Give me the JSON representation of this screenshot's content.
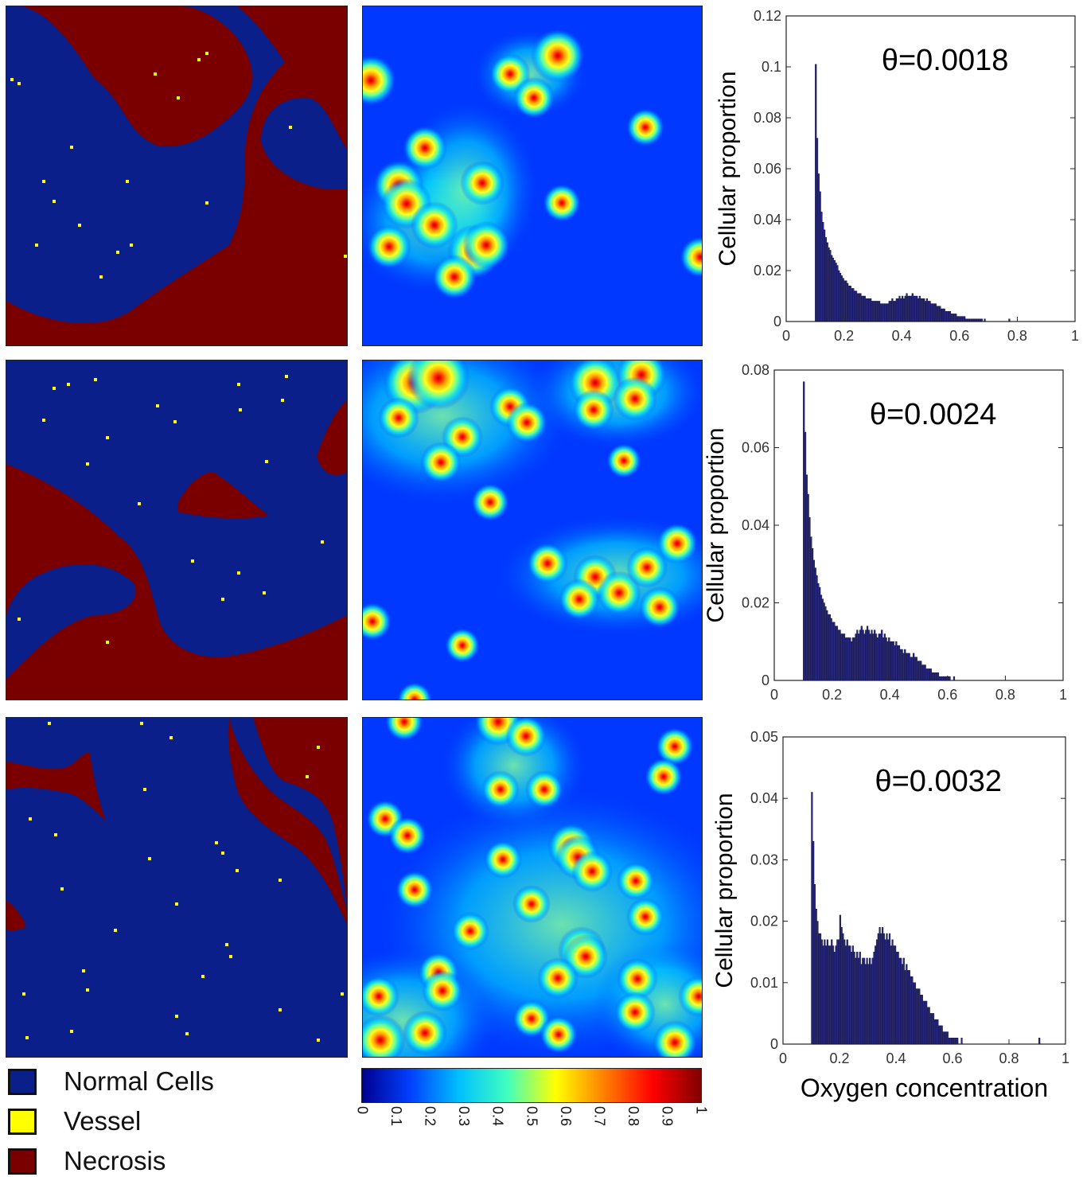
{
  "legend": {
    "items": [
      {
        "label": "Normal Cells",
        "color": "#0a1f8a"
      },
      {
        "label": "Vessel",
        "color": "#ffff00"
      },
      {
        "label": "Necrosis",
        "color": "#7a0000"
      }
    ]
  },
  "colormap": {
    "colors": [
      "#00008f",
      "#0040ff",
      "#00c0ff",
      "#40ffbf",
      "#ffff00",
      "#ff8000",
      "#ff0000",
      "#800000"
    ],
    "ticks": [
      "0",
      "0.1",
      "0.2",
      "0.3",
      "0.4",
      "0.5",
      "0.6",
      "0.7",
      "0.8",
      "0.9",
      "1"
    ]
  },
  "chart_data": [
    {
      "type": "bar",
      "annotation": "θ=0.0018",
      "xlabel": "",
      "ylabel": "Cellular proportion",
      "xlim": [
        0,
        1
      ],
      "ylim": [
        0,
        0.12
      ],
      "xticks": [
        "0",
        "0.2",
        "0.4",
        "0.6",
        "0.8",
        "1"
      ],
      "yticks": [
        "0",
        "0.02",
        "0.04",
        "0.06",
        "0.08",
        "0.1",
        "0.12"
      ],
      "bin_width": 0.005,
      "x_start": 0.1,
      "values": [
        0.101,
        0.072,
        0.058,
        0.051,
        0.043,
        0.039,
        0.036,
        0.033,
        0.031,
        0.029,
        0.028,
        0.026,
        0.025,
        0.024,
        0.023,
        0.022,
        0.02,
        0.019,
        0.018,
        0.017,
        0.016,
        0.016,
        0.015,
        0.014,
        0.014,
        0.013,
        0.013,
        0.012,
        0.012,
        0.011,
        0.011,
        0.011,
        0.01,
        0.01,
        0.01,
        0.009,
        0.009,
        0.009,
        0.009,
        0.008,
        0.008,
        0.008,
        0.008,
        0.008,
        0.008,
        0.007,
        0.007,
        0.007,
        0.007,
        0.007,
        0.007,
        0.008,
        0.008,
        0.009,
        0.008,
        0.008,
        0.009,
        0.009,
        0.01,
        0.009,
        0.01,
        0.009,
        0.01,
        0.011,
        0.01,
        0.01,
        0.01,
        0.011,
        0.01,
        0.01,
        0.01,
        0.009,
        0.01,
        0.009,
        0.009,
        0.009,
        0.008,
        0.009,
        0.008,
        0.008,
        0.007,
        0.007,
        0.007,
        0.007,
        0.006,
        0.006,
        0.006,
        0.005,
        0.005,
        0.005,
        0.004,
        0.004,
        0.004,
        0.004,
        0.003,
        0.003,
        0.003,
        0.003,
        0.002,
        0.002,
        0.002,
        0.002,
        0.002,
        0.002,
        0.001,
        0.001,
        0.001,
        0.001,
        0.001,
        0.001,
        0.001,
        0.001,
        0.001,
        0.001,
        0.001,
        0.001,
        0.0,
        0.001,
        0.0,
        0.0,
        0.0,
        0.0,
        0.0,
        0.0,
        0.0,
        0.0,
        0.0,
        0.0,
        0.0,
        0.0,
        0.0,
        0.0,
        0.0,
        0.0,
        0.001
      ]
    },
    {
      "type": "bar",
      "annotation": "θ=0.0024",
      "xlabel": "",
      "ylabel": "Cellular proportion",
      "xlim": [
        0,
        1
      ],
      "ylim": [
        0,
        0.08
      ],
      "xticks": [
        "0",
        "0.2",
        "0.4",
        "0.6",
        "0.8",
        "1"
      ],
      "yticks": [
        "0",
        "0.02",
        "0.04",
        "0.06",
        "0.08"
      ],
      "bin_width": 0.005,
      "x_start": 0.1,
      "values": [
        0.077,
        0.064,
        0.053,
        0.048,
        0.042,
        0.037,
        0.034,
        0.031,
        0.029,
        0.027,
        0.025,
        0.024,
        0.022,
        0.021,
        0.02,
        0.019,
        0.018,
        0.017,
        0.017,
        0.016,
        0.015,
        0.015,
        0.014,
        0.014,
        0.013,
        0.013,
        0.012,
        0.012,
        0.012,
        0.011,
        0.011,
        0.011,
        0.011,
        0.01,
        0.011,
        0.011,
        0.012,
        0.013,
        0.012,
        0.013,
        0.014,
        0.013,
        0.012,
        0.013,
        0.014,
        0.013,
        0.012,
        0.013,
        0.012,
        0.013,
        0.012,
        0.011,
        0.012,
        0.012,
        0.013,
        0.011,
        0.012,
        0.011,
        0.01,
        0.011,
        0.01,
        0.01,
        0.01,
        0.009,
        0.01,
        0.009,
        0.009,
        0.008,
        0.008,
        0.007,
        0.008,
        0.007,
        0.007,
        0.007,
        0.006,
        0.006,
        0.007,
        0.006,
        0.006,
        0.005,
        0.005,
        0.005,
        0.004,
        0.004,
        0.004,
        0.003,
        0.003,
        0.003,
        0.003,
        0.002,
        0.002,
        0.002,
        0.002,
        0.002,
        0.001,
        0.001,
        0.001,
        0.001,
        0.001,
        0.001,
        0.001,
        0.001,
        0.0,
        0.0,
        0.001,
        0.0,
        0.0,
        0.0,
        0.0,
        0.0,
        0.0,
        0.0,
        0.0,
        0.0,
        0.0
      ]
    },
    {
      "type": "bar",
      "annotation": "θ=0.0032",
      "xlabel": "Oxygen concentration",
      "ylabel": "Cellular proportion",
      "xlim": [
        0,
        1
      ],
      "ylim": [
        0,
        0.05
      ],
      "xticks": [
        "0",
        "0.2",
        "0.4",
        "0.6",
        "0.8",
        "1"
      ],
      "yticks": [
        "0",
        "0.01",
        "0.02",
        "0.03",
        "0.04",
        "0.05"
      ],
      "bin_width": 0.005,
      "x_start": 0.1,
      "values": [
        0.041,
        0.033,
        0.026,
        0.022,
        0.02,
        0.018,
        0.018,
        0.017,
        0.016,
        0.017,
        0.016,
        0.017,
        0.016,
        0.016,
        0.017,
        0.016,
        0.015,
        0.016,
        0.017,
        0.017,
        0.021,
        0.019,
        0.018,
        0.017,
        0.016,
        0.017,
        0.016,
        0.016,
        0.015,
        0.016,
        0.015,
        0.014,
        0.015,
        0.014,
        0.015,
        0.013,
        0.014,
        0.014,
        0.013,
        0.014,
        0.013,
        0.014,
        0.013,
        0.014,
        0.015,
        0.016,
        0.017,
        0.018,
        0.019,
        0.018,
        0.019,
        0.018,
        0.017,
        0.018,
        0.017,
        0.018,
        0.016,
        0.017,
        0.016,
        0.016,
        0.015,
        0.015,
        0.014,
        0.014,
        0.013,
        0.014,
        0.012,
        0.013,
        0.012,
        0.012,
        0.011,
        0.011,
        0.01,
        0.01,
        0.009,
        0.009,
        0.009,
        0.008,
        0.008,
        0.007,
        0.007,
        0.007,
        0.006,
        0.006,
        0.005,
        0.005,
        0.005,
        0.004,
        0.004,
        0.004,
        0.003,
        0.003,
        0.003,
        0.002,
        0.002,
        0.002,
        0.002,
        0.001,
        0.001,
        0.001,
        0.001,
        0.001,
        0.001,
        0.001,
        0.0,
        0.0,
        0.001,
        0.0,
        0.0,
        0.0,
        0.0,
        0.0,
        0.0,
        0.0,
        0.0,
        0.0,
        0.0,
        0.0,
        0.0,
        0.0,
        0.0,
        0.0,
        0.0,
        0.0,
        0.0,
        0.0,
        0.0,
        0.0,
        0.0,
        0.0,
        0.0,
        0.0,
        0.0,
        0.0,
        0.0,
        0.0,
        0.0,
        0.0,
        0.0,
        0.0,
        0.0,
        0.0,
        0.0,
        0.0,
        0.0,
        0.0,
        0.0,
        0.0,
        0.0,
        0.0,
        0.0,
        0.0,
        0.0,
        0.0,
        0.0,
        0.0,
        0.0,
        0.0,
        0.0,
        0.0,
        0.0,
        0.001
      ]
    }
  ]
}
